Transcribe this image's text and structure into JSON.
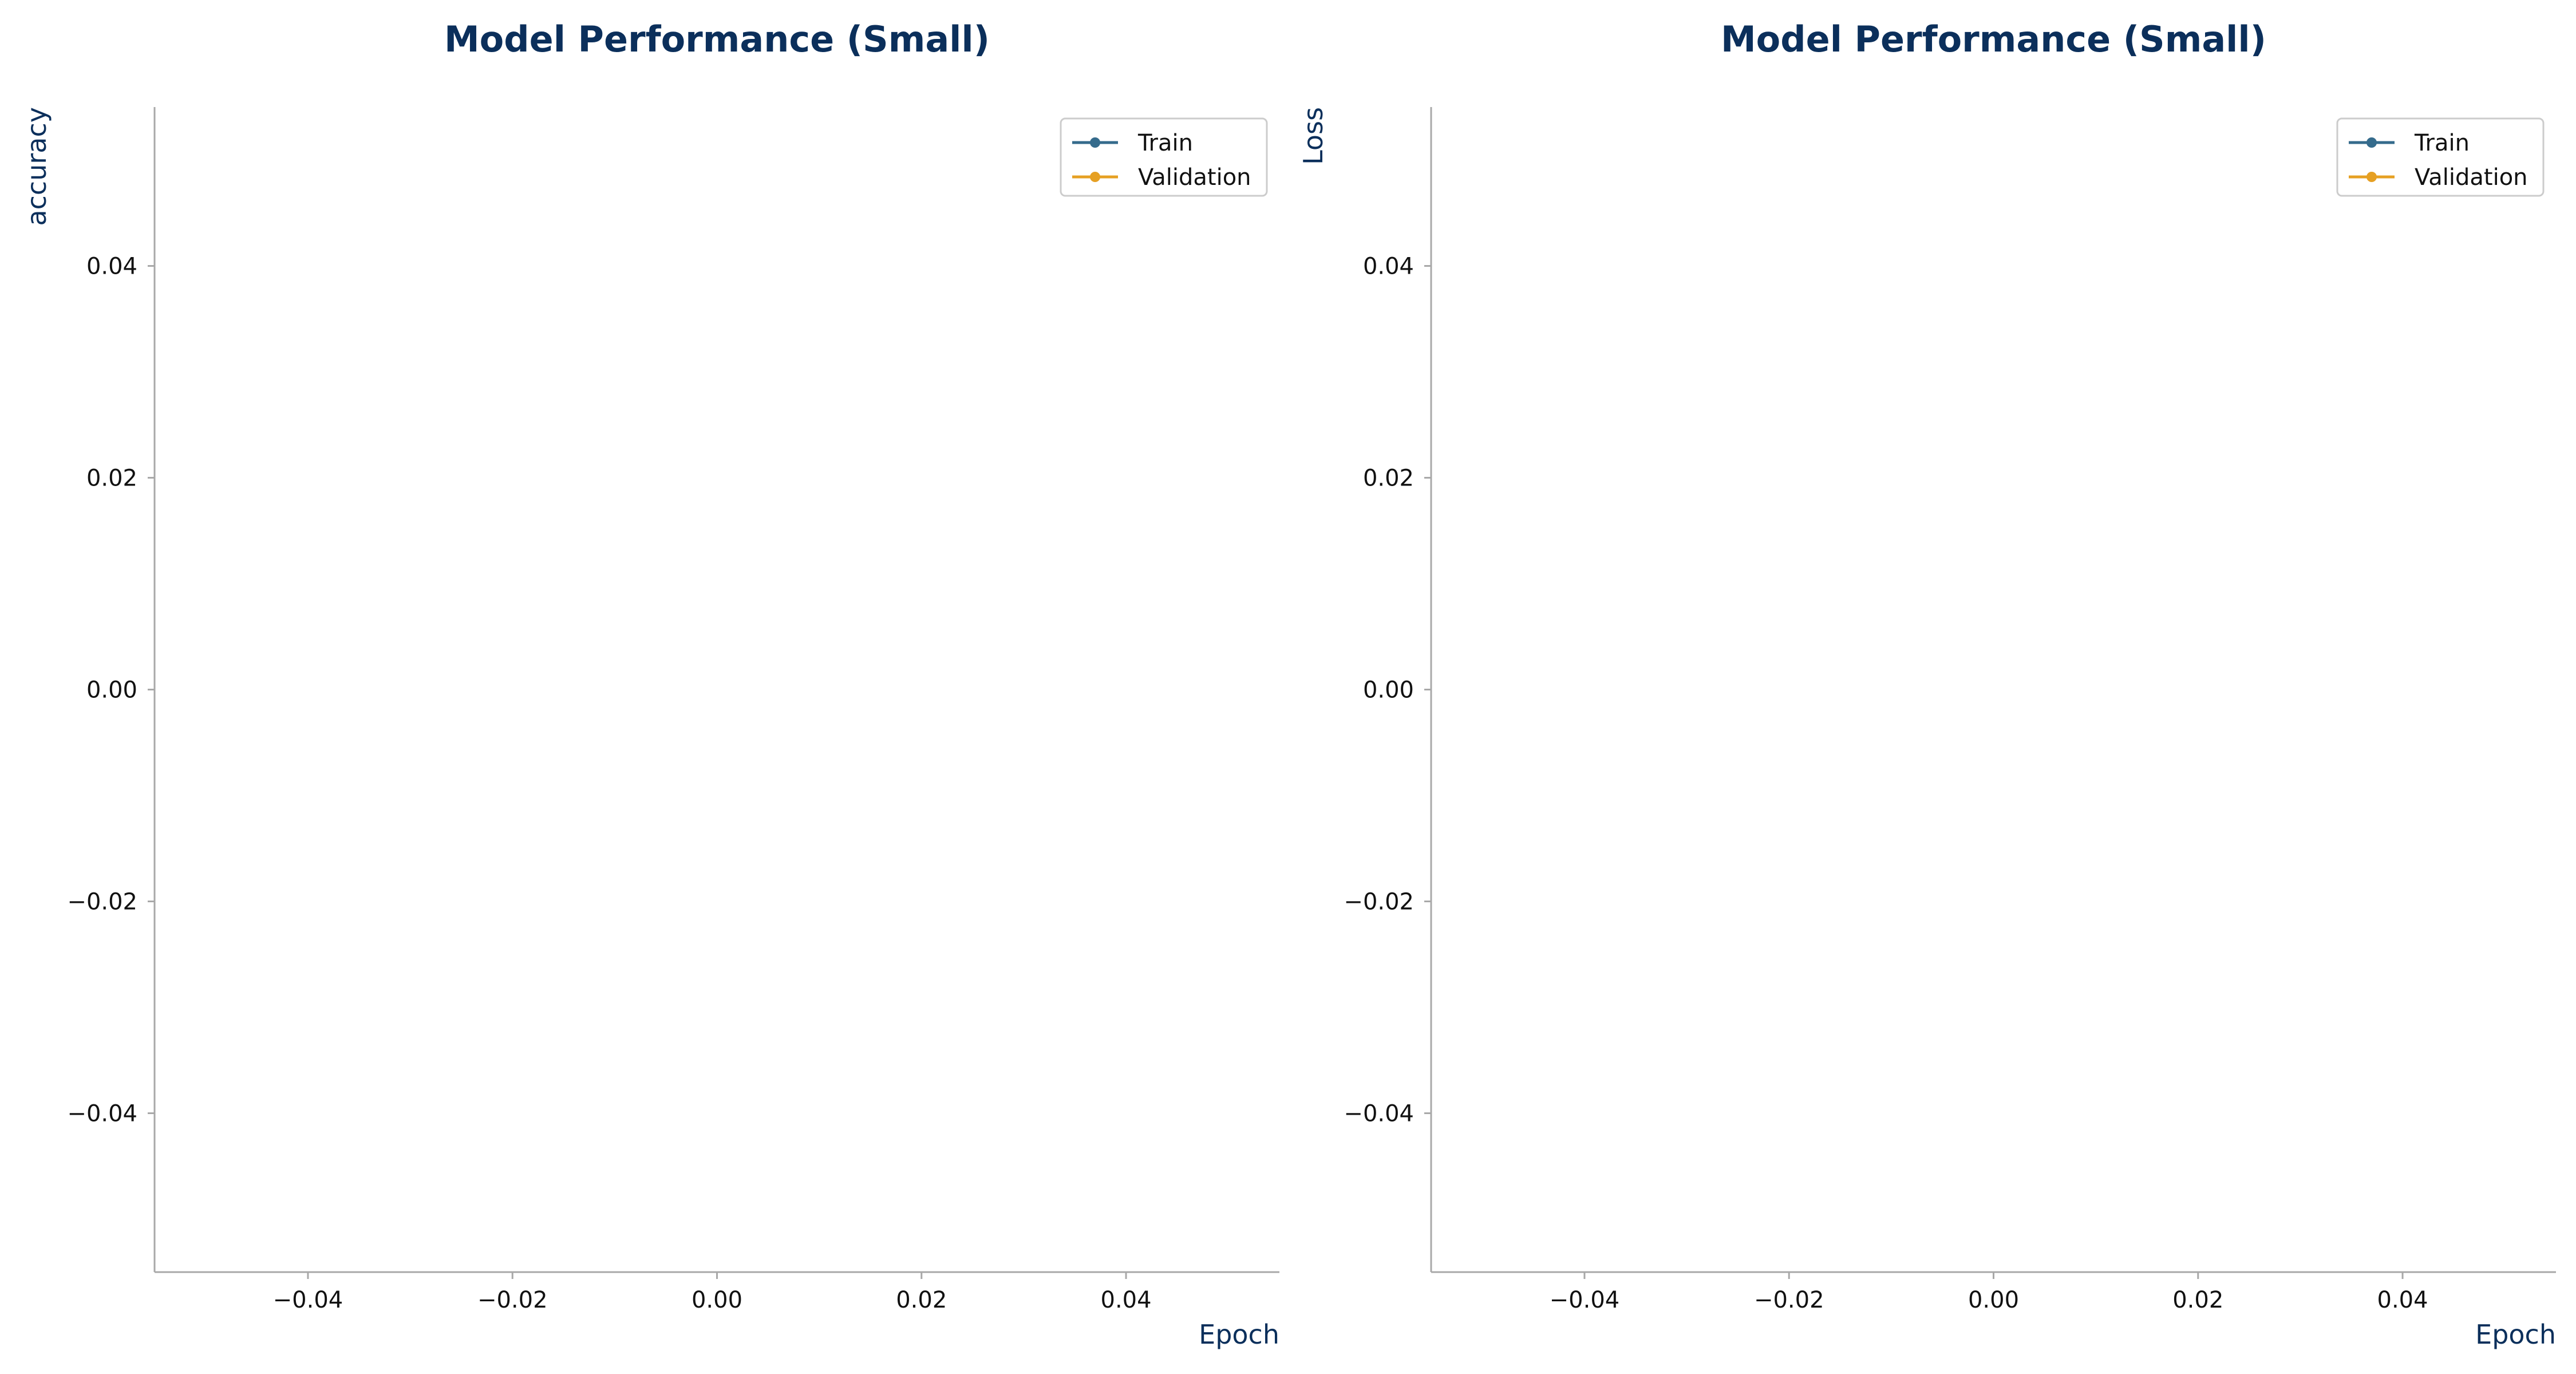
{
  "chart_data": [
    {
      "type": "line",
      "title": "Model Performance (Small)",
      "xlabel": "Epoch",
      "ylabel": "accuracy",
      "xlim": [
        -0.055,
        0.055
      ],
      "ylim": [
        -0.055,
        0.055
      ],
      "x_ticks": [
        -0.04,
        -0.02,
        0.0,
        0.02,
        0.04
      ],
      "y_ticks": [
        -0.04,
        -0.02,
        0.0,
        0.02,
        0.04
      ],
      "x_tick_labels": [
        "−0.04",
        "−0.02",
        "0.00",
        "0.02",
        "0.04"
      ],
      "y_tick_labels": [
        "−0.04",
        "−0.02",
        "0.00",
        "0.02",
        "0.04"
      ],
      "grid": false,
      "legend_position": "top-right",
      "series": [
        {
          "name": "Train",
          "color": "#356b8c",
          "marker": "circle",
          "x": [],
          "values": []
        },
        {
          "name": "Validation",
          "color": "#e6a023",
          "marker": "circle",
          "x": [],
          "values": []
        }
      ]
    },
    {
      "type": "line",
      "title": "Model Performance (Small)",
      "xlabel": "Epoch",
      "ylabel": "Loss",
      "xlim": [
        -0.055,
        0.055
      ],
      "ylim": [
        -0.055,
        0.055
      ],
      "x_ticks": [
        -0.04,
        -0.02,
        0.0,
        0.02,
        0.04
      ],
      "y_ticks": [
        -0.04,
        -0.02,
        0.0,
        0.02,
        0.04
      ],
      "x_tick_labels": [
        "−0.04",
        "−0.02",
        "0.00",
        "0.02",
        "0.04"
      ],
      "y_tick_labels": [
        "−0.04",
        "−0.02",
        "0.00",
        "0.02",
        "0.04"
      ],
      "grid": false,
      "legend_position": "top-right",
      "series": [
        {
          "name": "Train",
          "color": "#356b8c",
          "marker": "circle",
          "x": [],
          "values": []
        },
        {
          "name": "Validation",
          "color": "#e6a023",
          "marker": "circle",
          "x": [],
          "values": []
        }
      ]
    }
  ]
}
